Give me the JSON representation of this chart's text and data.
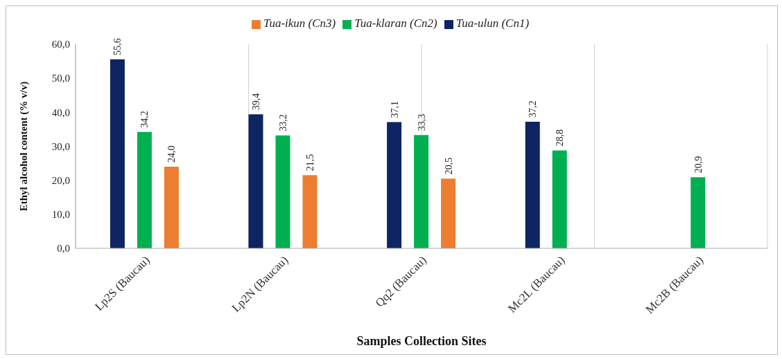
{
  "chart_data": {
    "type": "bar",
    "xlabel": "Samples Collection Sites",
    "ylabel": "Ethyl alcohol content (% v/v)",
    "categories": [
      "Lp2S (Baucau)",
      "Lp2N (Baucau)",
      "Qq2 (Baucau)",
      "Mc2L (Baucau)",
      "Mc2B (Baucau)"
    ],
    "series": [
      {
        "name": "Tua-ulun (Cn1)",
        "color": "#0e2463",
        "values": [
          55.6,
          39.4,
          37.1,
          37.2,
          null
        ],
        "value_labels": [
          "55,6",
          "39,4",
          "37,1",
          "37,2",
          null
        ]
      },
      {
        "name": "Tua-klaran (Cn2)",
        "color": "#00b050",
        "values": [
          34.2,
          33.2,
          33.3,
          28.8,
          20.9
        ],
        "value_labels": [
          "34,2",
          "33,2",
          "33,3",
          "28,8",
          "20,9"
        ]
      },
      {
        "name": "Tua-ikun (Cn3)",
        "color": "#ed7d31",
        "values": [
          24.0,
          21.5,
          20.5,
          null,
          null
        ],
        "value_labels": [
          "24,0",
          "21,5",
          "20,5",
          null,
          null
        ]
      }
    ],
    "ylim": [
      0,
      60
    ],
    "yticks": [
      {
        "value": 0,
        "label": "0,0"
      },
      {
        "value": 10,
        "label": "10,0"
      },
      {
        "value": 20,
        "label": "20,0"
      },
      {
        "value": 30,
        "label": "30,0"
      },
      {
        "value": 40,
        "label": "40,0"
      },
      {
        "value": 50,
        "label": "50,0"
      },
      {
        "value": 60,
        "label": "60,0"
      }
    ],
    "grid": "x",
    "legend": "top"
  }
}
